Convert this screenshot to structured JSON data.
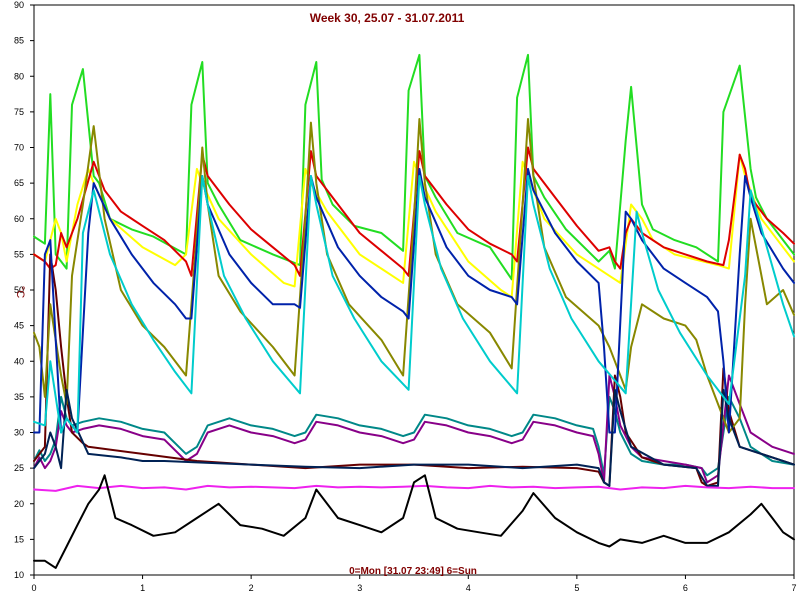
{
  "chart_data": {
    "type": "line",
    "title": "Week 30, 25.07 - 31.07.2011",
    "xlabel": "0=Mon [31.07 23:49] 6=Sun",
    "ylabel": "°C",
    "xlim": [
      0,
      7
    ],
    "ylim": [
      10,
      90
    ],
    "x_ticks": [
      0,
      1,
      2,
      3,
      4,
      5,
      6,
      7
    ],
    "y_ticks": [
      10,
      15,
      20,
      25,
      30,
      35,
      40,
      45,
      50,
      55,
      60,
      65,
      70,
      75,
      80,
      85,
      90
    ],
    "grid": true,
    "colors": {
      "background": "#ffffff",
      "grid": "#808080",
      "title": "#800000",
      "xlabel": "#800000",
      "ylabel": "#800000",
      "axis": "#000000"
    },
    "series": [
      {
        "color": "#22dd22",
        "x": [
          0,
          0.1,
          0.15,
          0.2,
          0.3,
          0.35,
          0.45,
          0.55,
          0.6,
          0.7,
          0.9,
          1.1,
          1.4,
          1.45,
          1.55,
          1.6,
          1.7,
          1.9,
          2.2,
          2.45,
          2.5,
          2.6,
          2.65,
          2.75,
          2.95,
          3.2,
          3.4,
          3.45,
          3.55,
          3.6,
          3.7,
          3.9,
          4.2,
          4.4,
          4.45,
          4.55,
          4.6,
          4.7,
          4.9,
          5.2,
          5.3,
          5.35,
          5.45,
          5.5,
          5.6,
          5.7,
          5.9,
          6.1,
          6.3,
          6.35,
          6.5,
          6.6,
          6.65,
          6.75,
          6.9,
          7
        ],
        "y": [
          57.5,
          56.5,
          77.5,
          55,
          53,
          76,
          81,
          66,
          65,
          60,
          58.5,
          57.5,
          55,
          76,
          82,
          65,
          62,
          57,
          55,
          53.5,
          76,
          82,
          65.5,
          62,
          59,
          58,
          55.5,
          78,
          83,
          66,
          63,
          58,
          56,
          51.5,
          77,
          83,
          66,
          63,
          58.5,
          54,
          55.5,
          53,
          71,
          78.5,
          62,
          58.5,
          57,
          56,
          54,
          75,
          81.5,
          67,
          63,
          60,
          57,
          55
        ]
      },
      {
        "color": "#ffff00",
        "x": [
          0,
          0.1,
          0.2,
          0.25,
          0.3,
          0.4,
          0.5,
          0.55,
          0.7,
          1,
          1.3,
          1.4,
          1.5,
          1.55,
          1.7,
          2,
          2.3,
          2.4,
          2.5,
          2.55,
          2.7,
          3,
          3.3,
          3.4,
          3.5,
          3.55,
          3.7,
          4,
          4.3,
          4.4,
          4.5,
          4.55,
          4.7,
          5,
          5.3,
          5.4,
          5.5,
          5.6,
          5.7,
          5.9,
          6.3,
          6.4,
          6.5,
          6.55,
          6.7,
          6.9,
          7
        ],
        "y": [
          55,
          54,
          60,
          58,
          54,
          62,
          67,
          65,
          60,
          56,
          53.5,
          55,
          67,
          65,
          60,
          55,
          51,
          50.5,
          67,
          65,
          61,
          55,
          52,
          51,
          68,
          66,
          61,
          54,
          50,
          49,
          68,
          66,
          60,
          55,
          52,
          51,
          62,
          60,
          57,
          55,
          53.5,
          53,
          69,
          66,
          60,
          56,
          54
        ]
      },
      {
        "color": "#dd0000",
        "x": [
          0,
          0.1,
          0.15,
          0.2,
          0.25,
          0.3,
          0.4,
          0.55,
          0.65,
          0.8,
          1,
          1.2,
          1.4,
          1.45,
          1.55,
          1.6,
          1.8,
          2,
          2.2,
          2.4,
          2.45,
          2.55,
          2.6,
          2.8,
          3,
          3.2,
          3.4,
          3.45,
          3.55,
          3.6,
          3.8,
          4,
          4.2,
          4.4,
          4.45,
          4.55,
          4.6,
          4.8,
          5,
          5.2,
          5.3,
          5.35,
          5.4,
          5.45,
          5.5,
          5.55,
          5.6,
          5.8,
          6,
          6.2,
          6.35,
          6.4,
          6.5,
          6.55,
          6.6,
          6.75,
          6.9,
          7
        ],
        "y": [
          55,
          54,
          53,
          53.5,
          58,
          56,
          60,
          68,
          64,
          61,
          59,
          57,
          54,
          52,
          69,
          66,
          62,
          58.5,
          56,
          53.5,
          52,
          69.5,
          66,
          62,
          58,
          55.5,
          53,
          52,
          69.5,
          66,
          62,
          58.5,
          56.5,
          55,
          54,
          70,
          67,
          63,
          59,
          55.5,
          56,
          54,
          53,
          58,
          60,
          59,
          58,
          56,
          55,
          54,
          53.5,
          57,
          69,
          67,
          63,
          60,
          58,
          56.5
        ]
      },
      {
        "color": "#008888",
        "x": [
          0,
          0.05,
          0.1,
          0.15,
          0.2,
          0.25,
          0.3,
          0.35,
          0.45,
          0.6,
          0.8,
          1,
          1.2,
          1.4,
          1.5,
          1.6,
          1.8,
          2,
          2.2,
          2.4,
          2.5,
          2.6,
          2.8,
          3,
          3.2,
          3.4,
          3.5,
          3.6,
          3.8,
          4,
          4.2,
          4.4,
          4.5,
          4.6,
          4.8,
          5,
          5.15,
          5.2,
          5.25,
          5.3,
          5.35,
          5.4,
          5.5,
          5.6,
          5.8,
          6,
          6.15,
          6.2,
          6.3,
          6.4,
          6.5,
          6.6,
          6.8,
          7
        ],
        "y": [
          26,
          27.5,
          26,
          27,
          29,
          35,
          32,
          31,
          31.5,
          32,
          31.5,
          30.5,
          30,
          27,
          28,
          31,
          32,
          31,
          30.5,
          29.5,
          30,
          32.5,
          32,
          31,
          30.5,
          29.5,
          30,
          32.5,
          32,
          31,
          30.5,
          29.5,
          30,
          32.5,
          32,
          31,
          30.5,
          28,
          24,
          35,
          33,
          30,
          27,
          26,
          25.5,
          25.5,
          25,
          24,
          25,
          35,
          32,
          28,
          26,
          25.5
        ]
      },
      {
        "color": "#880088",
        "x": [
          0,
          0.05,
          0.1,
          0.15,
          0.2,
          0.25,
          0.3,
          0.35,
          0.45,
          0.6,
          0.8,
          1,
          1.2,
          1.4,
          1.5,
          1.6,
          1.8,
          2,
          2.2,
          2.4,
          2.5,
          2.6,
          2.8,
          3,
          3.2,
          3.4,
          3.5,
          3.6,
          3.8,
          4,
          4.2,
          4.4,
          4.5,
          4.6,
          4.8,
          5,
          5.15,
          5.2,
          5.25,
          5.3,
          5.35,
          5.4,
          5.5,
          5.6,
          5.8,
          6,
          6.15,
          6.2,
          6.3,
          6.4,
          6.5,
          6.6,
          6.8,
          7
        ],
        "y": [
          25,
          26.5,
          25,
          26,
          28,
          33,
          31,
          30,
          30.5,
          31,
          30.5,
          29.5,
          29,
          26,
          27,
          30,
          31,
          30,
          29.5,
          28.5,
          29,
          31.5,
          31,
          30,
          29.5,
          28.5,
          29,
          31.5,
          31,
          30,
          29.5,
          28.5,
          29,
          31.5,
          31,
          30,
          29.5,
          27,
          23,
          38,
          35,
          31,
          28,
          26.5,
          26,
          25.5,
          25,
          23,
          24,
          38,
          34,
          30,
          28,
          27
        ]
      },
      {
        "color": "#660000",
        "x": [
          0,
          0.1,
          0.15,
          0.2,
          0.25,
          0.3,
          0.35,
          0.45,
          0.5,
          1,
          1.5,
          2,
          2.5,
          3,
          3.5,
          4,
          4.5,
          5,
          5.2,
          5.25,
          5.3,
          5.35,
          5.4,
          5.45,
          5.6,
          5.8,
          6.1,
          6.15,
          6.2,
          6.3,
          6.35,
          6.4,
          6.5,
          7
        ],
        "y": [
          26,
          28,
          55,
          50,
          42,
          35,
          30,
          28.5,
          28,
          27,
          26,
          25.5,
          25,
          25.5,
          25.5,
          25,
          25.2,
          25,
          24.5,
          23,
          22.5,
          38,
          35,
          30,
          26.5,
          25.5,
          25,
          23,
          22.5,
          23,
          39,
          33,
          28,
          25.5
        ]
      },
      {
        "color": "#888800",
        "x": [
          0,
          0.05,
          0.1,
          0.15,
          0.2,
          0.25,
          0.3,
          0.35,
          0.45,
          0.55,
          0.65,
          0.8,
          1,
          1.2,
          1.4,
          1.5,
          1.55,
          1.6,
          1.7,
          1.9,
          2.2,
          2.4,
          2.5,
          2.55,
          2.6,
          2.7,
          2.9,
          3.2,
          3.4,
          3.5,
          3.55,
          3.6,
          3.7,
          3.9,
          4.2,
          4.4,
          4.5,
          4.55,
          4.6,
          4.7,
          4.9,
          5.2,
          5.3,
          5.35,
          5.4,
          5.45,
          5.5,
          5.6,
          5.8,
          6,
          6.1,
          6.2,
          6.3,
          6.4,
          6.5,
          6.55,
          6.6,
          6.75,
          6.9,
          7
        ],
        "y": [
          44,
          42,
          35,
          48,
          43,
          38,
          34,
          52,
          62,
          73,
          60,
          50,
          45,
          42,
          38,
          58,
          70,
          62,
          52,
          47,
          42,
          38,
          60,
          73.5,
          65,
          55,
          48,
          43,
          38,
          60,
          74,
          65,
          55,
          48,
          44,
          39,
          62,
          74,
          66,
          56,
          49,
          45,
          42,
          40,
          38,
          36,
          42,
          48,
          46,
          45,
          43,
          38,
          34,
          30,
          32,
          48,
          60,
          48,
          50,
          46.5
        ]
      },
      {
        "color": "#0022aa",
        "x": [
          0,
          0.05,
          0.1,
          0.15,
          0.2,
          0.25,
          0.3,
          0.35,
          0.4,
          0.5,
          0.55,
          0.7,
          0.9,
          1.1,
          1.3,
          1.4,
          1.45,
          1.55,
          1.6,
          1.8,
          2,
          2.2,
          2.4,
          2.45,
          2.55,
          2.6,
          2.8,
          3,
          3.2,
          3.4,
          3.45,
          3.55,
          3.6,
          3.8,
          4,
          4.2,
          4.4,
          4.45,
          4.55,
          4.6,
          4.8,
          5,
          5.2,
          5.25,
          5.3,
          5.35,
          5.45,
          5.5,
          5.6,
          5.8,
          6,
          6.2,
          6.3,
          6.35,
          6.4,
          6.5,
          6.55,
          6.6,
          6.7,
          6.9,
          7
        ],
        "y": [
          30,
          30,
          55,
          57,
          43,
          30,
          32,
          31,
          30,
          58,
          65,
          60,
          55,
          51,
          48,
          46,
          46,
          66,
          62,
          55,
          51,
          48,
          48,
          47.5,
          66,
          63,
          56,
          52,
          49,
          47,
          46,
          67,
          63,
          56,
          52,
          50,
          49,
          48,
          67,
          64,
          58,
          54,
          51,
          42,
          30,
          30,
          61,
          60,
          57,
          53,
          51,
          49,
          47,
          40,
          30,
          55,
          66,
          63,
          58,
          53,
          51
        ]
      },
      {
        "color": "#002255",
        "x": [
          0,
          0.1,
          0.15,
          0.2,
          0.25,
          0.3,
          0.35,
          0.5,
          0.8,
          1,
          1.2,
          1.5,
          2,
          2.5,
          3,
          3.5,
          4,
          4.5,
          5,
          5.2,
          5.25,
          5.3,
          5.35,
          5.4,
          5.5,
          5.8,
          6.1,
          6.2,
          6.3,
          6.35,
          6.4,
          6.5,
          7
        ],
        "y": [
          25,
          27,
          30,
          28,
          25,
          36,
          32,
          27,
          26.5,
          26,
          26,
          25.8,
          25.5,
          25.2,
          25,
          25.5,
          25.5,
          25,
          25.5,
          25,
          23,
          22.5,
          36,
          33,
          28,
          25.5,
          25,
          22.5,
          22.5,
          36,
          32,
          28,
          25.5
        ]
      },
      {
        "color": "#ee22ee",
        "x": [
          0,
          0.2,
          0.4,
          0.6,
          0.8,
          1,
          1.2,
          1.4,
          1.6,
          1.8,
          2,
          2.2,
          2.4,
          2.6,
          2.8,
          3,
          3.2,
          3.4,
          3.6,
          3.8,
          4,
          4.2,
          4.4,
          4.6,
          4.8,
          5,
          5.2,
          5.4,
          5.6,
          5.8,
          6,
          6.2,
          6.4,
          6.6,
          6.8,
          7
        ],
        "y": [
          22,
          21.8,
          22.5,
          22.2,
          22.5,
          22.2,
          22.3,
          22,
          22.5,
          22.3,
          22.4,
          22.3,
          22.2,
          22.5,
          22.3,
          22.4,
          22.3,
          22.4,
          22.5,
          22.3,
          22.2,
          22.5,
          22.3,
          22.4,
          22.2,
          22.3,
          22.4,
          22,
          22.3,
          22.2,
          22.5,
          22.3,
          22.2,
          22.4,
          22.2,
          22.2
        ]
      },
      {
        "color": "#00cccc",
        "x": [
          0,
          0.1,
          0.15,
          0.2,
          0.25,
          0.3,
          0.35,
          0.4,
          0.45,
          0.55,
          0.7,
          0.9,
          1.1,
          1.3,
          1.45,
          1.55,
          1.6,
          1.75,
          1.95,
          2.2,
          2.45,
          2.55,
          2.6,
          2.75,
          2.95,
          3.2,
          3.45,
          3.55,
          3.6,
          3.75,
          3.95,
          4.2,
          4.45,
          4.55,
          4.6,
          4.75,
          4.95,
          5.2,
          5.45,
          5.55,
          5.6,
          5.75,
          5.95,
          6.2,
          6.4,
          6.55,
          6.6,
          6.75,
          6.9,
          7
        ],
        "y": [
          31.5,
          31,
          40,
          35,
          30,
          32,
          31,
          30,
          58,
          64,
          55,
          48,
          43,
          38.5,
          35.5,
          66,
          62,
          52,
          46,
          40,
          35.5,
          66,
          62,
          52,
          46,
          40,
          36,
          66,
          62,
          53,
          46,
          40,
          35.5,
          66,
          62,
          53,
          46,
          40,
          35.5,
          61,
          58,
          50,
          44,
          38,
          34,
          52,
          64,
          56,
          48,
          43.5
        ]
      },
      {
        "color": "#000000",
        "x": [
          0,
          0.1,
          0.2,
          0.3,
          0.4,
          0.5,
          0.6,
          0.65,
          0.75,
          0.9,
          1.1,
          1.3,
          1.5,
          1.6,
          1.7,
          1.9,
          2.1,
          2.3,
          2.5,
          2.6,
          2.8,
          3,
          3.2,
          3.4,
          3.5,
          3.6,
          3.7,
          3.9,
          4.1,
          4.3,
          4.5,
          4.6,
          4.8,
          5,
          5.2,
          5.3,
          5.4,
          5.6,
          5.8,
          6,
          6.2,
          6.4,
          6.6,
          6.7,
          6.8,
          6.9,
          7
        ],
        "y": [
          12,
          12,
          11,
          14,
          17,
          20,
          22,
          24,
          18,
          17,
          15.5,
          16,
          18,
          19,
          20,
          17,
          16.5,
          15.5,
          18,
          22,
          18,
          17,
          16,
          18,
          23,
          24,
          18,
          16.5,
          16,
          15.5,
          19,
          21.5,
          18,
          16,
          14.5,
          14,
          15,
          14.5,
          15.5,
          14.5,
          14.5,
          16,
          18.5,
          20,
          18,
          16,
          15
        ]
      }
    ]
  }
}
